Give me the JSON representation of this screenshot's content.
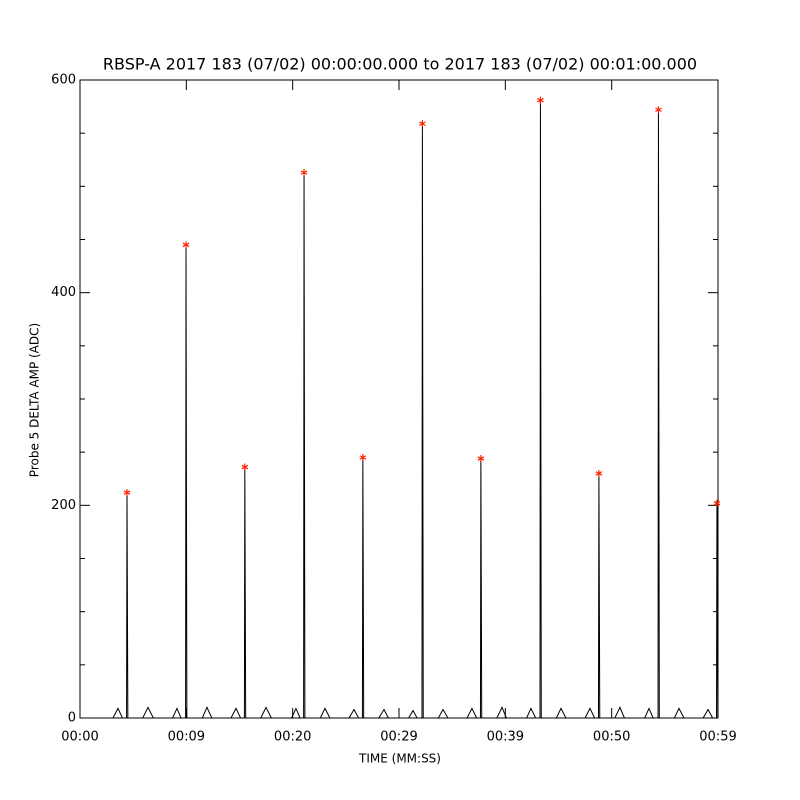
{
  "chart_data": {
    "type": "line",
    "title": "RBSP-A 2017 183 (07/02) 00:00:00.000 to 2017 183 (07/02) 00:01:00.000",
    "x_label": "TIME (MM:SS)",
    "y_label": "Probe 5 DELTA AMP (ADC)",
    "xlim": [
      0,
      60
    ],
    "xticks": [
      {
        "value": 0,
        "label": "00:00"
      },
      {
        "value": 10,
        "label": "00:09"
      },
      {
        "value": 20,
        "label": "00:20"
      },
      {
        "value": 30,
        "label": "00:29"
      },
      {
        "value": 40,
        "label": "00:39"
      },
      {
        "value": 50,
        "label": "00:50"
      },
      {
        "value": 60,
        "label": "00:59"
      }
    ],
    "ylim": [
      0,
      600
    ],
    "yticks": [
      0,
      200,
      400,
      600
    ],
    "yminorticks": [
      50,
      100,
      150,
      250,
      300,
      350,
      450,
      500,
      550
    ],
    "series": [
      {
        "color": "#000000",
        "style": "line",
        "x": [
          3.1,
          3.57,
          4.0,
          4.38,
          4.42,
          4.5,
          5.9,
          6.39,
          6.9,
          8.7,
          9.12,
          9.5,
          9.93,
          9.97,
          10.05,
          11.5,
          11.94,
          12.4,
          14.2,
          14.67,
          15.1,
          15.46,
          15.5,
          15.58,
          17.0,
          17.49,
          18.0,
          19.9,
          20.31,
          20.7,
          21.03,
          21.07,
          21.15,
          22.6,
          23.04,
          23.5,
          25.3,
          25.77,
          26.2,
          26.56,
          26.6,
          26.68,
          28.1,
          28.59,
          29.0,
          30.9,
          31.32,
          31.7,
          32.16,
          32.2,
          32.28,
          33.7,
          34.14,
          34.6,
          36.4,
          36.86,
          37.3,
          37.66,
          37.7,
          37.78,
          39.2,
          39.69,
          40.1,
          42.0,
          42.41,
          42.85,
          43.26,
          43.3,
          43.38,
          44.8,
          45.23,
          45.7,
          47.5,
          47.96,
          48.4,
          48.76,
          48.8,
          48.88,
          50.3,
          50.78,
          51.2,
          53.1,
          53.51,
          53.9,
          54.36,
          54.4,
          54.48,
          55.9,
          56.33,
          56.8,
          58.6,
          59.06,
          59.5,
          59.86,
          59.9,
          59.98
        ],
        "values": [
          0,
          9,
          0,
          0,
          212,
          0,
          0,
          10,
          0,
          0,
          9,
          0,
          0,
          445,
          0,
          0,
          10,
          0,
          0,
          9,
          0,
          0,
          236,
          0,
          0,
          10,
          0,
          0,
          9,
          0,
          0,
          513,
          0,
          0,
          9,
          0,
          0,
          8,
          0,
          0,
          245,
          0,
          0,
          8,
          0,
          0,
          7,
          0,
          0,
          559,
          0,
          0,
          8,
          0,
          0,
          9,
          0,
          0,
          244,
          0,
          0,
          10,
          0,
          0,
          9,
          0,
          0,
          581,
          0,
          0,
          9,
          0,
          0,
          9,
          0,
          0,
          230,
          0,
          0,
          10,
          0,
          0,
          9,
          0,
          0,
          572,
          0,
          0,
          9,
          0,
          0,
          8,
          0,
          0,
          202,
          0
        ]
      },
      {
        "color": "#ff2000",
        "style": "asterisk",
        "x": [
          4.42,
          9.97,
          15.5,
          21.07,
          26.6,
          32.2,
          37.7,
          43.3,
          48.8,
          54.4,
          59.9
        ],
        "values": [
          212,
          445,
          236,
          513,
          245,
          559,
          244,
          581,
          230,
          572,
          202
        ]
      }
    ]
  }
}
